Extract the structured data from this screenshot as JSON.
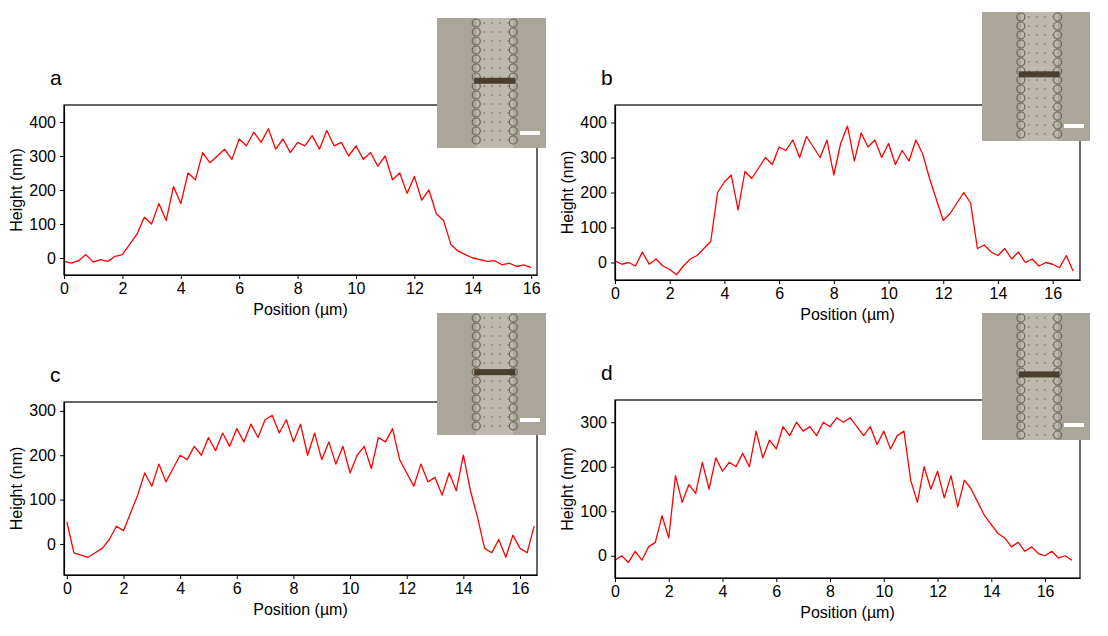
{
  "chart_data": [
    {
      "type": "line",
      "title": "a",
      "x_label": "Position (µm)",
      "y_label": "Height (nm)",
      "xlim": [
        0,
        16.2
      ],
      "xticks": [
        0,
        2,
        4,
        6,
        8,
        10,
        12,
        14,
        16
      ],
      "ylim": [
        -50,
        450
      ],
      "yticks": [
        0,
        100,
        200,
        300,
        400
      ],
      "x": [
        0,
        0.25,
        0.5,
        0.75,
        1,
        1.25,
        1.5,
        1.75,
        2,
        2.25,
        2.5,
        2.75,
        3,
        3.25,
        3.5,
        3.75,
        4,
        4.25,
        4.5,
        4.75,
        5,
        5.25,
        5.5,
        5.75,
        6,
        6.25,
        6.5,
        6.75,
        7,
        7.25,
        7.5,
        7.75,
        8,
        8.25,
        8.5,
        8.75,
        9,
        9.25,
        9.5,
        9.75,
        10,
        10.25,
        10.5,
        10.75,
        11,
        11.25,
        11.5,
        11.75,
        12,
        12.25,
        12.5,
        12.75,
        13,
        13.25,
        13.5,
        13.75,
        14,
        14.25,
        14.5,
        14.75,
        15,
        15.25,
        15.5,
        15.75,
        16
      ],
      "series": [
        {
          "color": "#ff0000",
          "values": [
            -10,
            -15,
            -8,
            10,
            -12,
            -5,
            -10,
            5,
            10,
            40,
            70,
            120,
            100,
            160,
            110,
            210,
            160,
            250,
            230,
            310,
            280,
            300,
            320,
            290,
            350,
            330,
            370,
            340,
            380,
            320,
            350,
            310,
            340,
            330,
            360,
            320,
            375,
            330,
            340,
            300,
            330,
            290,
            310,
            270,
            300,
            230,
            250,
            190,
            240,
            170,
            200,
            130,
            110,
            40,
            20,
            10,
            0,
            -5,
            -10,
            -8,
            -20,
            -15,
            -25,
            -20,
            -28
          ]
        }
      ]
    },
    {
      "type": "line",
      "title": "b",
      "x_label": "Position (µm)",
      "y_label": "Height (nm)",
      "xlim": [
        0,
        17
      ],
      "xticks": [
        0,
        2,
        4,
        6,
        8,
        10,
        12,
        14,
        16
      ],
      "ylim": [
        -50,
        450
      ],
      "yticks": [
        0,
        100,
        200,
        300,
        400
      ],
      "x": [
        0,
        0.25,
        0.5,
        0.75,
        1,
        1.25,
        1.5,
        1.75,
        2,
        2.25,
        2.5,
        2.75,
        3,
        3.25,
        3.5,
        3.75,
        4,
        4.25,
        4.5,
        4.75,
        5,
        5.25,
        5.5,
        5.75,
        6,
        6.25,
        6.5,
        6.75,
        7,
        7.25,
        7.5,
        7.75,
        8,
        8.25,
        8.5,
        8.75,
        9,
        9.25,
        9.5,
        9.75,
        10,
        10.25,
        10.5,
        10.75,
        11,
        11.25,
        11.5,
        11.75,
        12,
        12.25,
        12.5,
        12.75,
        13,
        13.25,
        13.5,
        13.75,
        14,
        14.25,
        14.5,
        14.75,
        15,
        15.25,
        15.5,
        15.75,
        16,
        16.25,
        16.5,
        16.75
      ],
      "series": [
        {
          "color": "#ff0000",
          "values": [
            5,
            -5,
            0,
            -10,
            30,
            -5,
            10,
            -10,
            -20,
            -35,
            -10,
            10,
            20,
            40,
            60,
            200,
            230,
            250,
            150,
            260,
            240,
            270,
            300,
            280,
            330,
            320,
            350,
            300,
            360,
            330,
            300,
            350,
            250,
            340,
            390,
            290,
            370,
            330,
            350,
            300,
            340,
            280,
            320,
            290,
            350,
            310,
            240,
            180,
            120,
            140,
            170,
            200,
            170,
            40,
            50,
            30,
            20,
            40,
            10,
            30,
            0,
            10,
            -10,
            0,
            -5,
            -15,
            20,
            -25
          ]
        }
      ]
    },
    {
      "type": "line",
      "title": "c",
      "x_label": "Position (µm)",
      "y_label": "Height (nm)",
      "xlim": [
        -0.1,
        16.6
      ],
      "xticks": [
        0,
        2,
        4,
        6,
        8,
        10,
        12,
        14,
        16
      ],
      "ylim": [
        -70,
        320
      ],
      "yticks": [
        0,
        100,
        200,
        300
      ],
      "x": [
        0,
        0.25,
        0.5,
        0.75,
        1,
        1.25,
        1.5,
        1.75,
        2,
        2.25,
        2.5,
        2.75,
        3,
        3.25,
        3.5,
        3.75,
        4,
        4.25,
        4.5,
        4.75,
        5,
        5.25,
        5.5,
        5.75,
        6,
        6.25,
        6.5,
        6.75,
        7,
        7.25,
        7.5,
        7.75,
        8,
        8.25,
        8.5,
        8.75,
        9,
        9.25,
        9.5,
        9.75,
        10,
        10.25,
        10.5,
        10.75,
        11,
        11.25,
        11.5,
        11.75,
        12,
        12.25,
        12.5,
        12.75,
        13,
        13.25,
        13.5,
        13.75,
        14,
        14.25,
        14.5,
        14.75,
        15,
        15.25,
        15.5,
        15.75,
        16,
        16.25,
        16.5
      ],
      "series": [
        {
          "color": "#ff0000",
          "values": [
            50,
            -20,
            -25,
            -30,
            -20,
            -10,
            10,
            40,
            30,
            70,
            110,
            160,
            130,
            180,
            140,
            170,
            200,
            190,
            220,
            200,
            240,
            210,
            250,
            220,
            260,
            230,
            270,
            240,
            280,
            290,
            250,
            280,
            230,
            270,
            200,
            250,
            190,
            230,
            180,
            220,
            160,
            200,
            220,
            170,
            240,
            230,
            260,
            190,
            160,
            130,
            180,
            140,
            150,
            110,
            160,
            120,
            200,
            120,
            60,
            -10,
            -20,
            10,
            -30,
            20,
            -10,
            -20,
            40
          ]
        }
      ]
    },
    {
      "type": "line",
      "title": "d",
      "x_label": "Position (µm)",
      "y_label": "Height (nm)",
      "xlim": [
        0,
        17.3
      ],
      "xticks": [
        0,
        2,
        4,
        6,
        8,
        10,
        12,
        14,
        16
      ],
      "ylim": [
        -50,
        350
      ],
      "yticks": [
        0,
        100,
        200,
        300
      ],
      "x": [
        0,
        0.25,
        0.5,
        0.75,
        1,
        1.25,
        1.5,
        1.75,
        2,
        2.25,
        2.5,
        2.75,
        3,
        3.25,
        3.5,
        3.75,
        4,
        4.25,
        4.5,
        4.75,
        5,
        5.25,
        5.5,
        5.75,
        6,
        6.25,
        6.5,
        6.75,
        7,
        7.25,
        7.5,
        7.75,
        8,
        8.25,
        8.5,
        8.75,
        9,
        9.25,
        9.5,
        9.75,
        10,
        10.25,
        10.5,
        10.75,
        11,
        11.25,
        11.5,
        11.75,
        12,
        12.25,
        12.5,
        12.75,
        13,
        13.25,
        13.5,
        13.75,
        14,
        14.25,
        14.5,
        14.75,
        15,
        15.25,
        15.5,
        15.75,
        16,
        16.25,
        16.5,
        16.75,
        17
      ],
      "series": [
        {
          "color": "#ff0000",
          "values": [
            -10,
            0,
            -15,
            10,
            -10,
            20,
            30,
            90,
            40,
            180,
            120,
            160,
            140,
            210,
            150,
            220,
            190,
            210,
            200,
            230,
            200,
            280,
            220,
            260,
            240,
            290,
            270,
            300,
            280,
            290,
            270,
            300,
            290,
            310,
            300,
            310,
            290,
            270,
            290,
            250,
            280,
            240,
            270,
            280,
            170,
            120,
            200,
            150,
            190,
            130,
            180,
            110,
            170,
            150,
            120,
            90,
            70,
            50,
            40,
            20,
            30,
            10,
            20,
            5,
            0,
            10,
            -5,
            0,
            -10
          ]
        }
      ]
    }
  ]
}
